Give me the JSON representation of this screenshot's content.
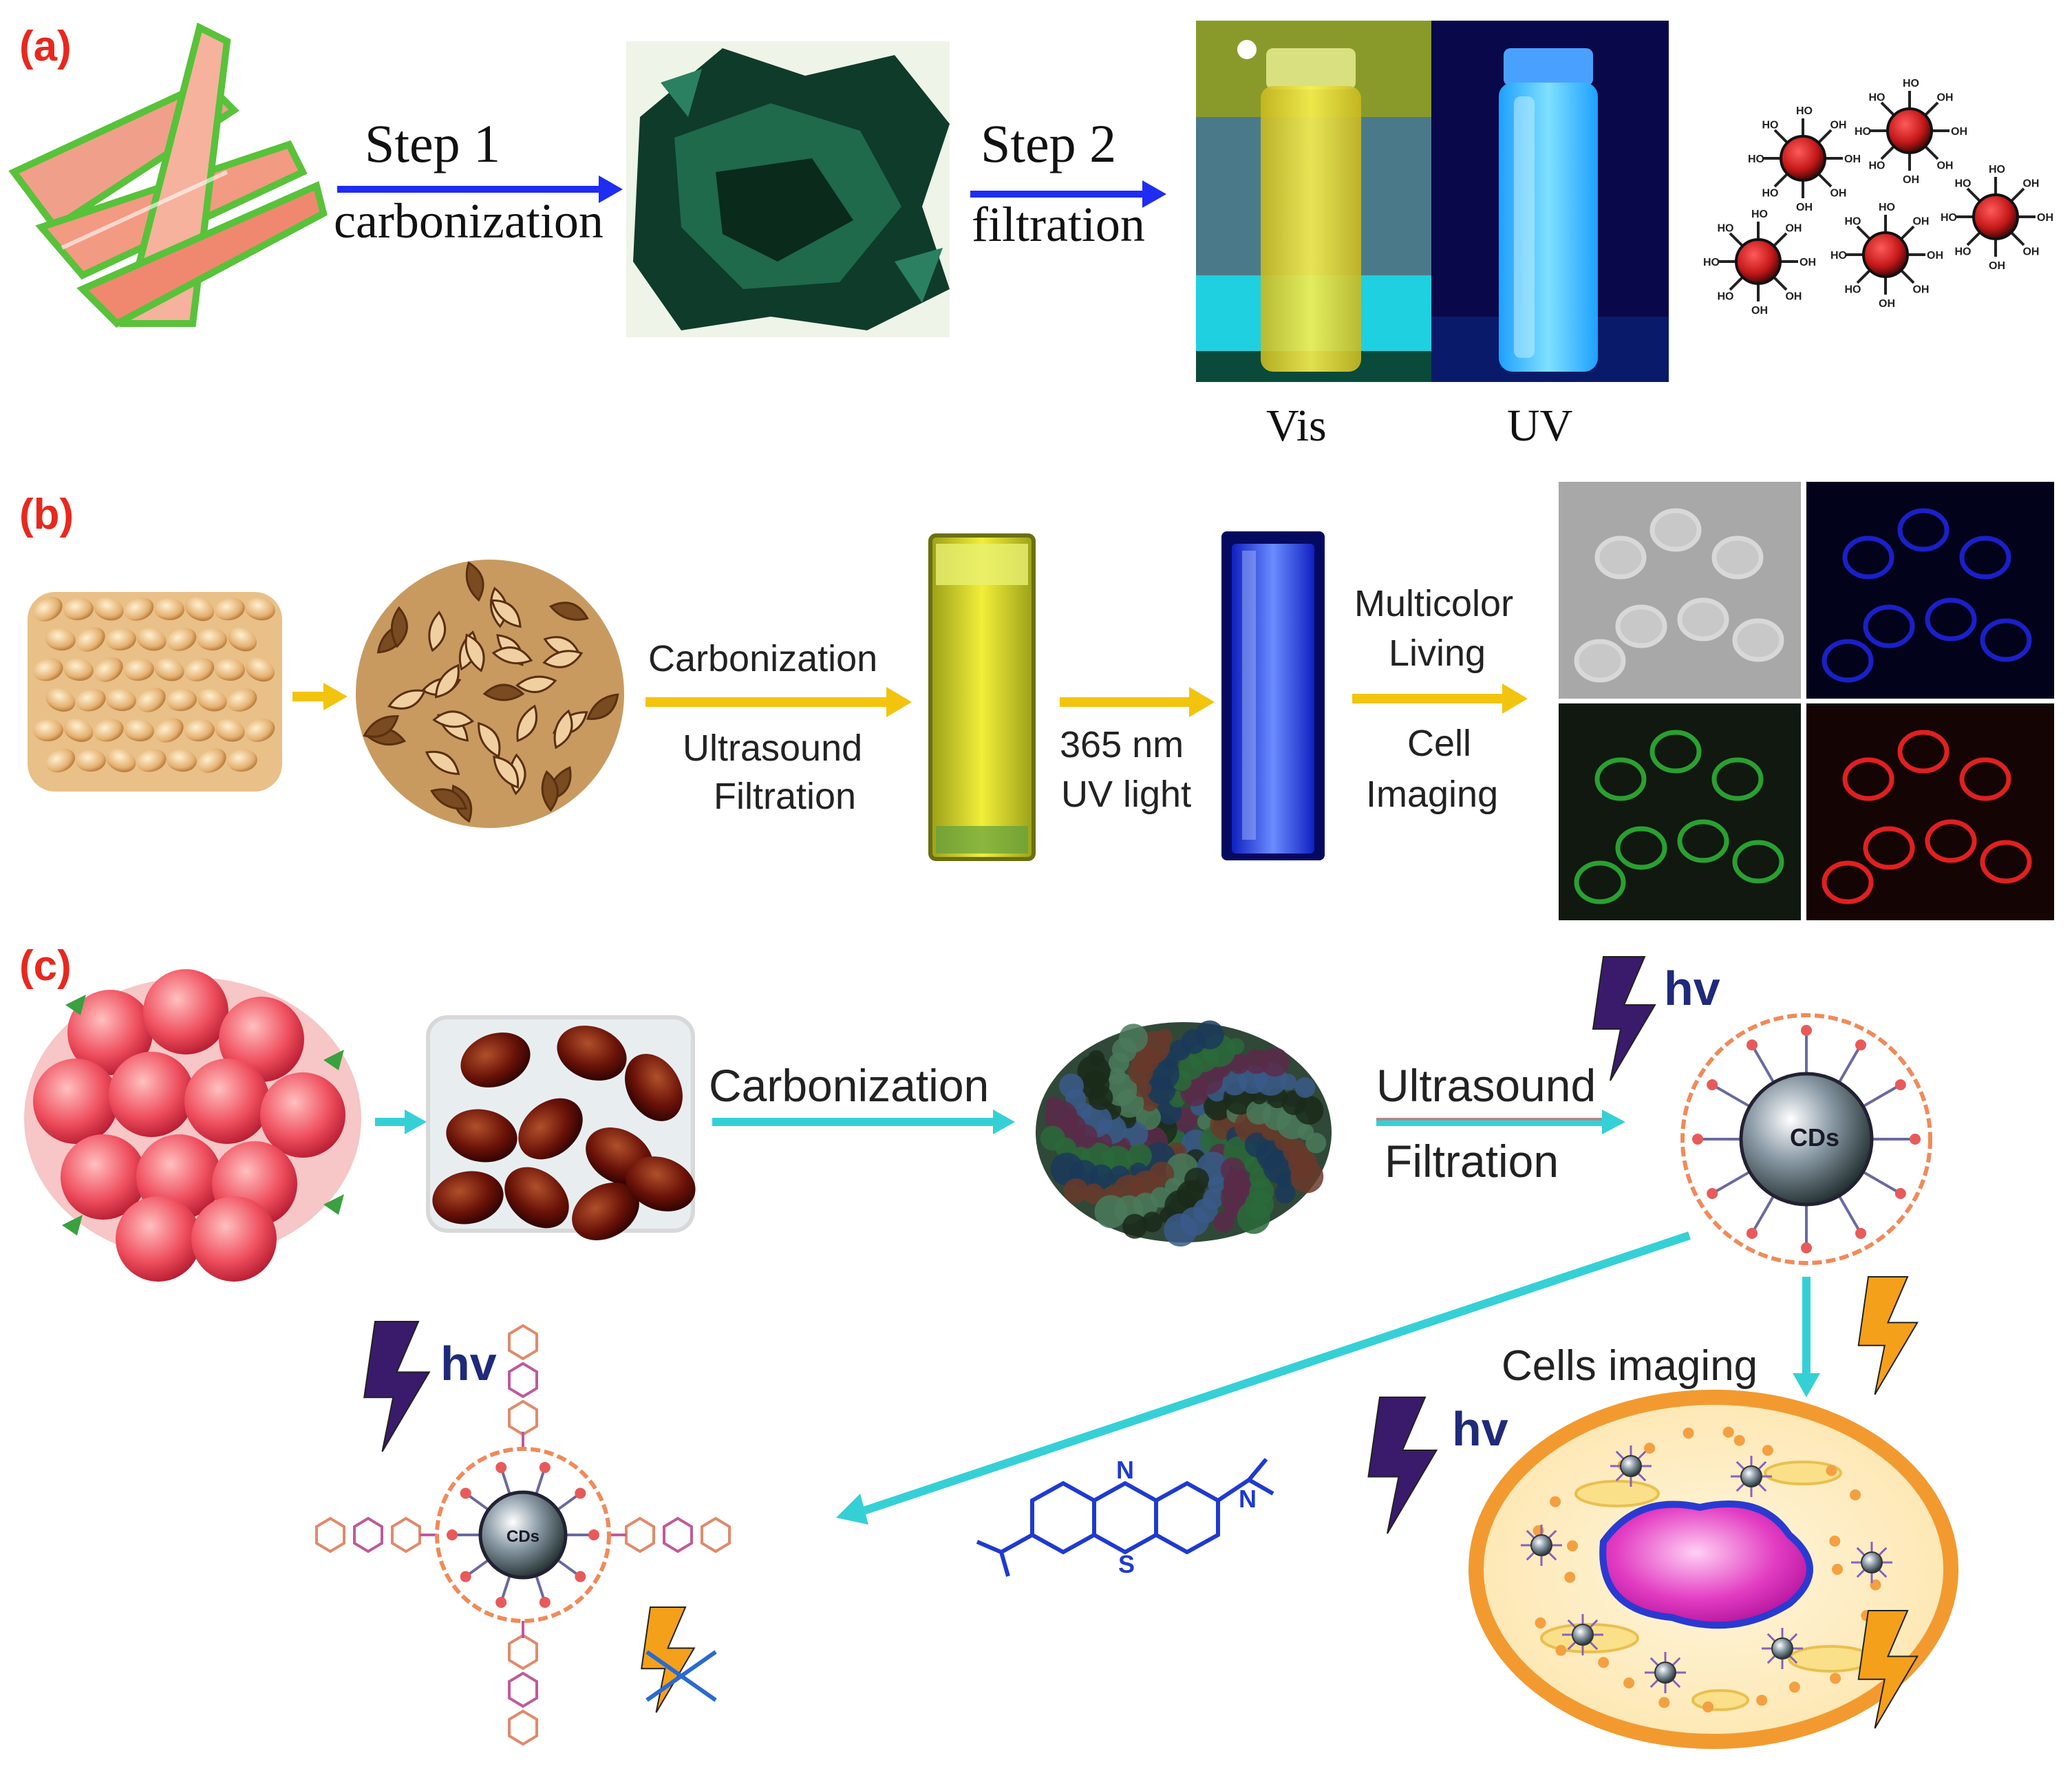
{
  "panel_a": {
    "label": "(a)",
    "step1_title": "Step 1",
    "step1_sub": "carbonization",
    "step2_title": "Step 2",
    "step2_sub": "filtration",
    "vis_label": "Vis",
    "uv_label": "UV",
    "group_labels": [
      "HO",
      "OH"
    ]
  },
  "panel_b": {
    "label": "(b)",
    "arrow1_top": "Carbonization",
    "arrow1_bottom_1": "Ultrasound",
    "arrow1_bottom_2": "Filtration",
    "arrow2_top": "365 nm",
    "arrow2_bottom": "UV light",
    "arrow3_top_1": "Multicolor",
    "arrow3_top_2": "Living",
    "arrow3_bottom_1": "Cell",
    "arrow3_bottom_2": "Imaging"
  },
  "panel_c": {
    "label": "(c)",
    "arrow1": "Carbonization",
    "arrow2_top": "Ultrasound",
    "arrow2_bottom": "Filtration",
    "hv": "hv",
    "cds": "CDs",
    "cells_imaging": "Cells imaging",
    "dye_n1": "N",
    "dye_n2": "N",
    "dye_s": "S"
  },
  "colors": {
    "label_red": "#e8281e",
    "arrow_blue": "#1f2cf2",
    "arrow_yellow": "#f2c40d",
    "arrow_cyan": "#35d0d6",
    "bolt_purple": "#3a1a6b",
    "bolt_orange": "#f5a01a",
    "hv_blue": "#1f2a7a"
  }
}
